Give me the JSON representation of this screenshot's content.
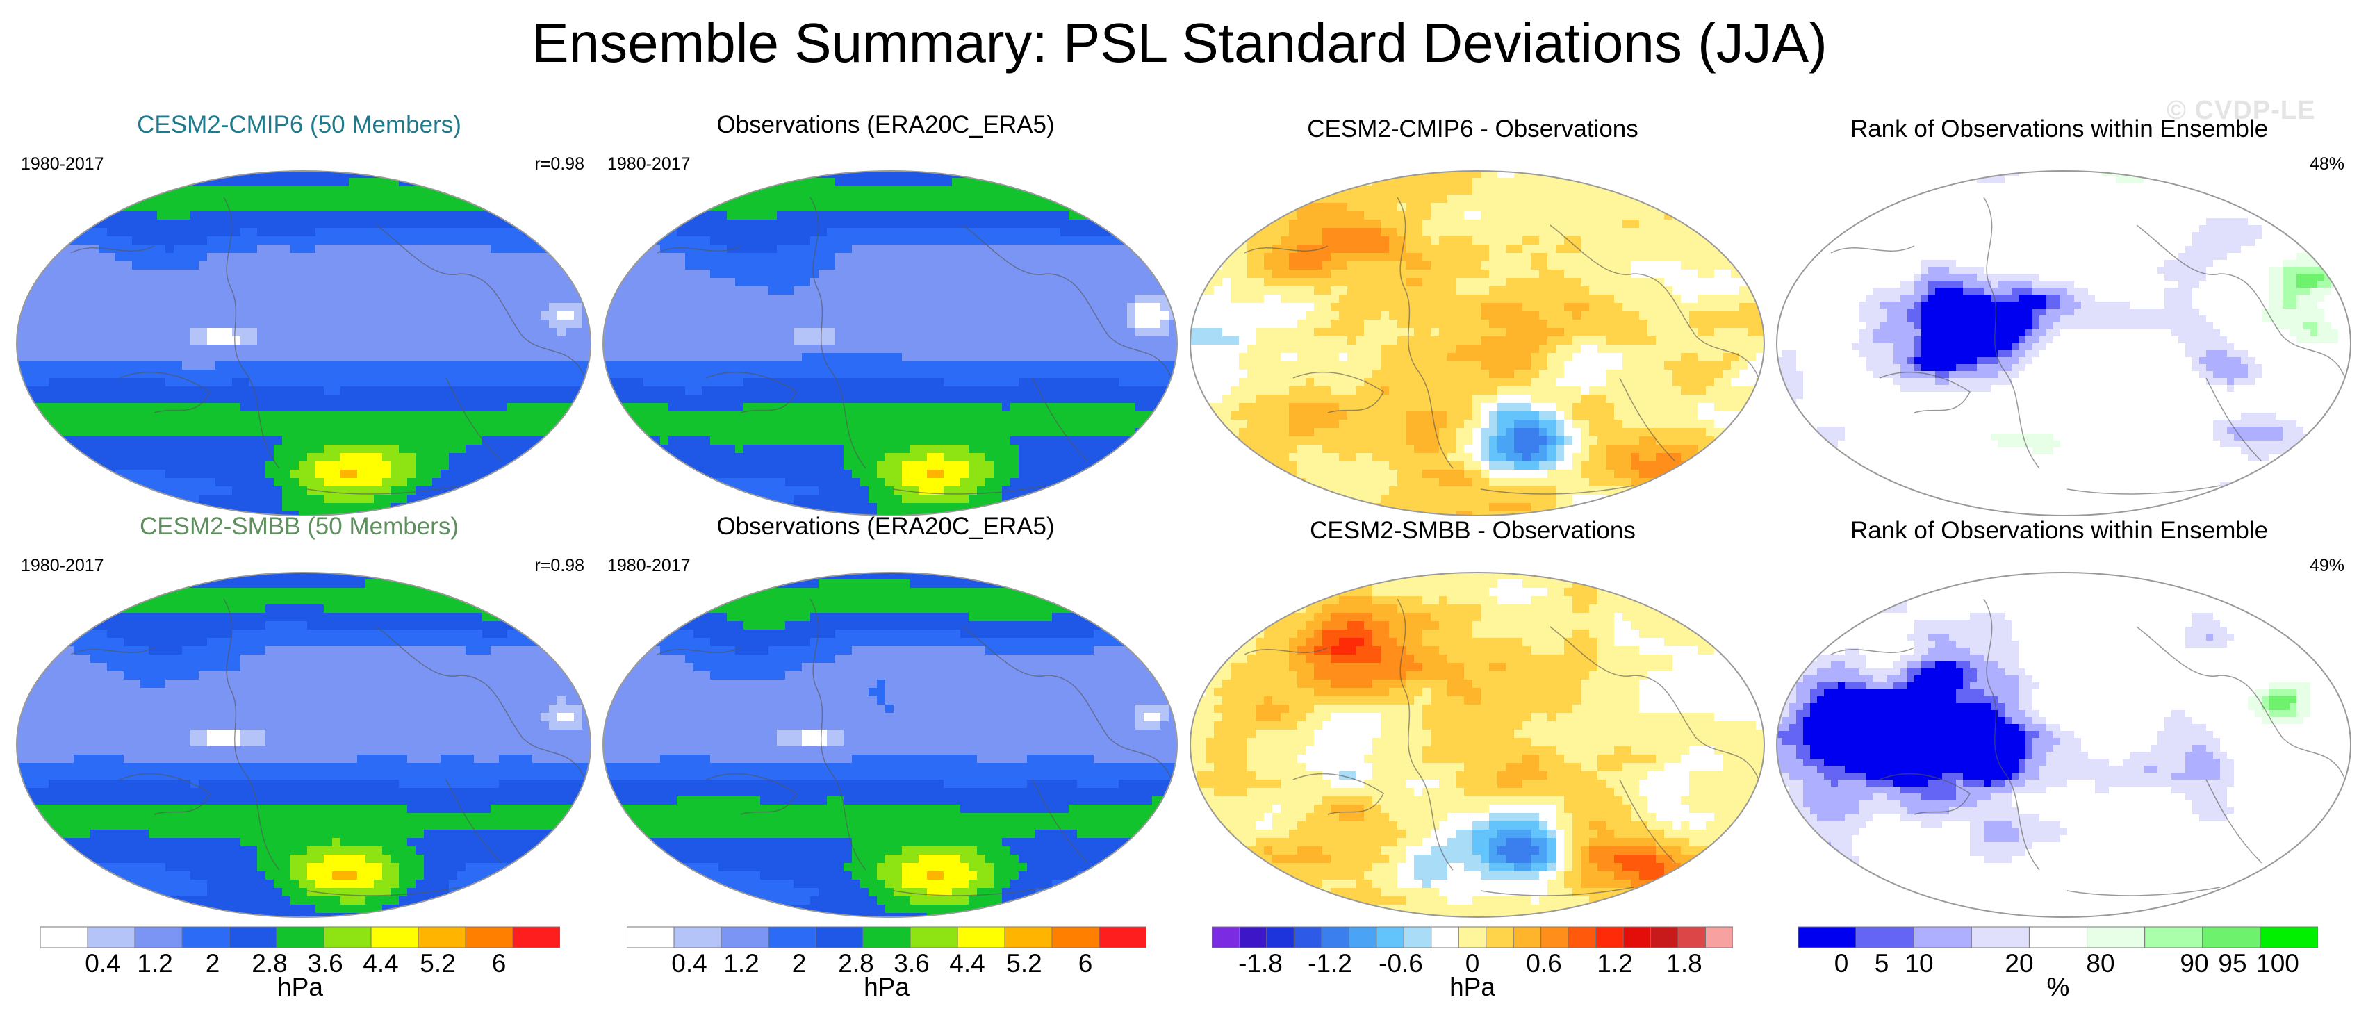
{
  "title": "Ensemble Summary: PSL Standard Deviations (JJA)",
  "watermark": "© CVDP-LE",
  "chart_data": [
    {
      "type": "heatmap",
      "title": "CESM2-CMIP6 (50 Members)",
      "title_color": "#1f7a8c",
      "left_label": "1980-2017",
      "right_label": "r=0.98",
      "cmap": "std",
      "units": "hPa"
    },
    {
      "type": "heatmap",
      "title": "Observations (ERA20C_ERA5)",
      "title_color": "#000000",
      "left_label": "1980-2017",
      "right_label": "",
      "cmap": "std",
      "units": "hPa"
    },
    {
      "type": "heatmap",
      "title": "CESM2-CMIP6 - Observations",
      "title_color": "#000000",
      "left_label": "",
      "right_label": "",
      "cmap": "diff",
      "units": "hPa"
    },
    {
      "type": "heatmap",
      "title": "Rank of Observations within Ensemble",
      "title_color": "#000000",
      "left_label": "",
      "right_label": "48%",
      "cmap": "rank",
      "units": "%"
    },
    {
      "type": "heatmap",
      "title": "CESM2-SMBB (50 Members)",
      "title_color": "#5f8f5f",
      "left_label": "1980-2017",
      "right_label": "r=0.98",
      "cmap": "std",
      "units": "hPa"
    },
    {
      "type": "heatmap",
      "title": "Observations (ERA20C_ERA5)",
      "title_color": "#000000",
      "left_label": "1980-2017",
      "right_label": "",
      "cmap": "std",
      "units": "hPa"
    },
    {
      "type": "heatmap",
      "title": "CESM2-SMBB - Observations",
      "title_color": "#000000",
      "left_label": "",
      "right_label": "",
      "cmap": "diff",
      "units": "hPa"
    },
    {
      "type": "heatmap",
      "title": "Rank of Observations within Ensemble",
      "title_color": "#000000",
      "left_label": "",
      "right_label": "49%",
      "cmap": "rank",
      "units": "%"
    }
  ],
  "colorbars": {
    "std": {
      "colors": [
        "#ffffff",
        "#b4c3f8",
        "#7b95f5",
        "#2b6bf5",
        "#1f57e6",
        "#12c32e",
        "#8ee312",
        "#ffff00",
        "#ffb400",
        "#ff7f00",
        "#ff1e1e"
      ],
      "bounds": [
        0,
        0.4,
        1.2,
        2,
        2.8,
        3.6,
        4.4,
        5.2,
        6,
        6.8
      ],
      "tick_labels": [
        "0.4",
        "1.2",
        "2",
        "2.8",
        "3.6",
        "4.4",
        "5.2",
        "6"
      ],
      "units": "hPa"
    },
    "diff": {
      "colors": [
        "#7b2be2",
        "#3d16c8",
        "#1d33dc",
        "#2d5ae6",
        "#3b7fef",
        "#4ba3f5",
        "#63c3fb",
        "#a8dcf7",
        "#ffffff",
        "#fff59a",
        "#ffd34a",
        "#ffb52b",
        "#ff8f1a",
        "#ff5a0c",
        "#ff2a08",
        "#e30d0a",
        "#c81a1a",
        "#dd4646",
        "#f7a1a1"
      ],
      "tick_labels": [
        "-1.8",
        "-1.2",
        "-0.6",
        "0",
        "0.6",
        "1.2",
        "1.8"
      ],
      "units": "hPa"
    },
    "rank": {
      "colors": [
        "#0000f0",
        "#6464f5",
        "#afafff",
        "#e0e0fc",
        "#ffffff",
        "#e6ffe6",
        "#aaffaa",
        "#6ef26e",
        "#00f000"
      ],
      "tick_labels": [
        "0",
        "5",
        "10",
        "20",
        "80",
        "90",
        "95",
        "100"
      ],
      "units": "%"
    }
  }
}
